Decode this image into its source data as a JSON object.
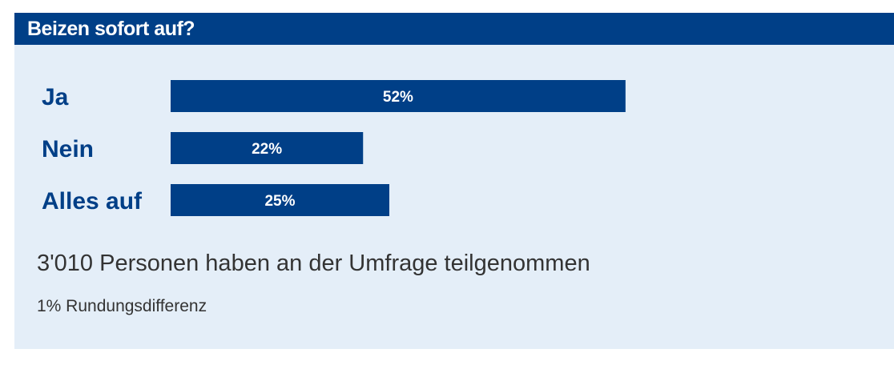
{
  "poll": {
    "title": "Beizen sofort auf?",
    "participants_text": "3'010 Personen haben an der Umfrage teilgenommen",
    "note": "1% Rundungsdifferenz"
  },
  "colors": {
    "accent": "#003f87",
    "panel_background": "#e4eef8",
    "bar_text": "#ffffff",
    "body_text": "#333333"
  },
  "chart_data": {
    "type": "bar",
    "orientation": "horizontal",
    "title": "Beizen sofort auf?",
    "categories": [
      "Ja",
      "Nein",
      "Alles auf"
    ],
    "values": [
      52,
      22,
      25
    ],
    "value_labels": [
      "52%",
      "22%",
      "25%"
    ],
    "unit": "%",
    "xlim": [
      0,
      100
    ],
    "grid": false,
    "legend": "none"
  }
}
